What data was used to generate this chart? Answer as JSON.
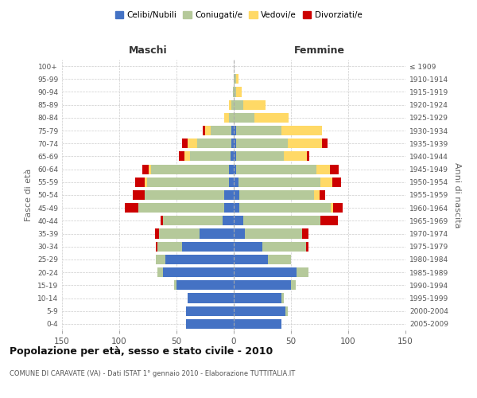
{
  "age_groups": [
    "0-4",
    "5-9",
    "10-14",
    "15-19",
    "20-24",
    "25-29",
    "30-34",
    "35-39",
    "40-44",
    "45-49",
    "50-54",
    "55-59",
    "60-64",
    "65-69",
    "70-74",
    "75-79",
    "80-84",
    "85-89",
    "90-94",
    "95-99",
    "100+"
  ],
  "birth_years": [
    "2005-2009",
    "2000-2004",
    "1995-1999",
    "1990-1994",
    "1985-1989",
    "1980-1984",
    "1975-1979",
    "1970-1974",
    "1965-1969",
    "1960-1964",
    "1955-1959",
    "1950-1954",
    "1945-1949",
    "1940-1944",
    "1935-1939",
    "1930-1934",
    "1925-1929",
    "1920-1924",
    "1915-1919",
    "1910-1914",
    "≤ 1909"
  ],
  "male": {
    "celibi": [
      42,
      42,
      40,
      50,
      62,
      60,
      45,
      30,
      10,
      8,
      8,
      4,
      4,
      3,
      2,
      2,
      0,
      0,
      0,
      0,
      0
    ],
    "coniugati": [
      0,
      0,
      0,
      2,
      5,
      8,
      22,
      35,
      52,
      75,
      70,
      72,
      68,
      35,
      30,
      18,
      4,
      2,
      1,
      0,
      0
    ],
    "vedovi": [
      0,
      0,
      0,
      0,
      0,
      0,
      0,
      0,
      0,
      0,
      0,
      2,
      2,
      5,
      8,
      5,
      4,
      2,
      0,
      0,
      0
    ],
    "divorziati": [
      0,
      0,
      0,
      0,
      0,
      0,
      1,
      4,
      2,
      12,
      10,
      8,
      6,
      5,
      5,
      2,
      0,
      0,
      0,
      0,
      0
    ]
  },
  "female": {
    "nubili": [
      42,
      45,
      42,
      50,
      55,
      30,
      25,
      10,
      8,
      5,
      5,
      4,
      2,
      2,
      2,
      2,
      0,
      0,
      0,
      0,
      0
    ],
    "coniugate": [
      0,
      2,
      2,
      4,
      10,
      20,
      38,
      50,
      68,
      80,
      65,
      72,
      70,
      42,
      45,
      40,
      18,
      8,
      2,
      2,
      0
    ],
    "vedove": [
      0,
      0,
      0,
      0,
      0,
      0,
      0,
      0,
      0,
      2,
      5,
      10,
      12,
      20,
      30,
      35,
      30,
      20,
      5,
      2,
      0
    ],
    "divorziate": [
      0,
      0,
      0,
      0,
      0,
      0,
      2,
      5,
      15,
      8,
      5,
      8,
      8,
      2,
      5,
      0,
      0,
      0,
      0,
      0,
      0
    ]
  },
  "colors": {
    "celibi_nubili": "#4472c4",
    "coniugati": "#b5c99a",
    "vedovi": "#ffd966",
    "divorziati": "#cc0000"
  },
  "xlim": 150,
  "title": "Popolazione per età, sesso e stato civile - 2010",
  "subtitle": "COMUNE DI CARAVATE (VA) - Dati ISTAT 1° gennaio 2010 - Elaborazione TUTTITALIA.IT",
  "ylabel_left": "Fasce di età",
  "ylabel_right": "Anni di nascita",
  "xlabel_left": "Maschi",
  "xlabel_right": "Femmine",
  "legend_labels": [
    "Celibi/Nubili",
    "Coniugati/e",
    "Vedovi/e",
    "Divorziati/e"
  ]
}
